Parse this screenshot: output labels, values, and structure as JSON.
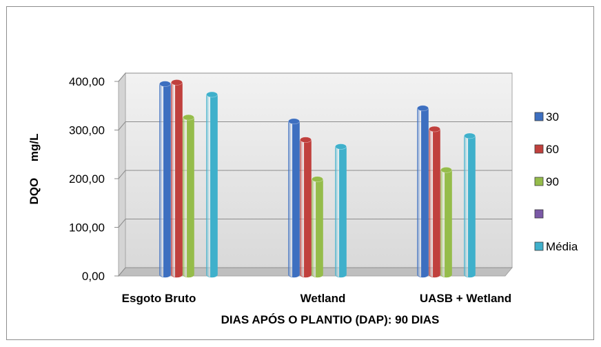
{
  "chart_data": {
    "type": "bar",
    "categories": [
      "Esgoto Bruto",
      "Wetland",
      "UASB + Wetland"
    ],
    "series": [
      {
        "name": "30",
        "values": [
          395,
          318,
          345
        ],
        "color": "#3d6fc0"
      },
      {
        "name": "60",
        "values": [
          398,
          280,
          302
        ],
        "color": "#c0403d"
      },
      {
        "name": "90",
        "values": [
          326,
          199,
          218
        ],
        "color": "#95bc4a"
      },
      {
        "name": "",
        "values": [
          null,
          null,
          null
        ],
        "color": "#7a58a6"
      },
      {
        "name": "Média",
        "values": [
          373,
          266,
          288
        ],
        "color": "#3fb0cb"
      }
    ],
    "xlabel": "DIAS APÓS O PLANTIO (DAP): 90 DIAS",
    "ylabel": "DQO     mg/L",
    "ylim": [
      0,
      400
    ],
    "yticks": [
      "0,00",
      "100,00",
      "200,00",
      "300,00",
      "400,00"
    ],
    "grid": true,
    "legend_position": "right"
  }
}
